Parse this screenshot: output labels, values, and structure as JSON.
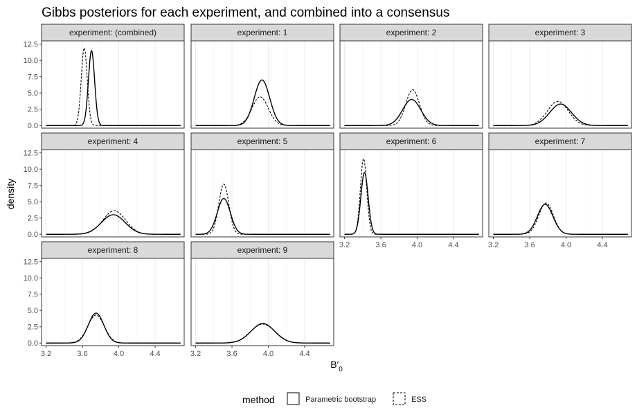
{
  "chart_data": {
    "type": "line",
    "title": "Gibbs posteriors for each experiment, and combined into a consensus",
    "xlabel": "B′",
    "xlabel_subscript": "0",
    "ylabel": "density",
    "xlim": [
      3.15,
      4.72
    ],
    "ylim": [
      -0.4,
      13.0
    ],
    "x_ticks": [
      3.2,
      3.6,
      4.0,
      4.4
    ],
    "x_tick_labels": [
      "3.2",
      "3.6",
      "4.0",
      "4.4"
    ],
    "y_ticks": [
      0,
      2.5,
      5,
      7.5,
      10,
      12.5
    ],
    "y_tick_labels": [
      "0.0",
      "2.5",
      "5.0",
      "7.5",
      "10.0",
      "12.5"
    ],
    "grid": true,
    "facet_rows": 3,
    "facet_cols": 4,
    "facets": [
      {
        "label": "experiment: (combined)",
        "series": [
          {
            "name": "Parametric bootstrap",
            "mean": 3.7,
            "sd": 0.034,
            "peak": 11.5
          },
          {
            "name": "ESS",
            "mean": 3.62,
            "sd": 0.033,
            "peak": 11.9
          }
        ]
      },
      {
        "label": "experiment: 1",
        "series": [
          {
            "name": "Parametric bootstrap",
            "mean": 3.93,
            "sd": 0.085,
            "peak": 7.0
          },
          {
            "name": "ESS",
            "mean": 3.91,
            "sd": 0.09,
            "peak": 4.4
          }
        ]
      },
      {
        "label": "experiment: 2",
        "series": [
          {
            "name": "Parametric bootstrap",
            "mean": 3.94,
            "sd": 0.1,
            "peak": 4.0
          },
          {
            "name": "ESS",
            "mean": 3.95,
            "sd": 0.075,
            "peak": 5.5
          }
        ]
      },
      {
        "label": "experiment: 3",
        "series": [
          {
            "name": "Parametric bootstrap",
            "mean": 3.94,
            "sd": 0.12,
            "peak": 3.3
          },
          {
            "name": "ESS",
            "mean": 3.91,
            "sd": 0.115,
            "peak": 3.7
          }
        ]
      },
      {
        "label": "experiment: 4",
        "series": [
          {
            "name": "Parametric bootstrap",
            "mean": 3.94,
            "sd": 0.13,
            "peak": 3.0
          },
          {
            "name": "ESS",
            "mean": 3.95,
            "sd": 0.125,
            "peak": 3.6
          }
        ]
      },
      {
        "label": "experiment: 5",
        "series": [
          {
            "name": "Parametric bootstrap",
            "mean": 3.51,
            "sd": 0.072,
            "peak": 5.5
          },
          {
            "name": "ESS",
            "mean": 3.51,
            "sd": 0.055,
            "peak": 7.7
          }
        ]
      },
      {
        "label": "experiment: 6",
        "series": [
          {
            "name": "Parametric bootstrap",
            "mean": 3.42,
            "sd": 0.04,
            "peak": 9.5
          },
          {
            "name": "ESS",
            "mean": 3.41,
            "sd": 0.035,
            "peak": 11.6
          }
        ]
      },
      {
        "label": "experiment: 7",
        "series": [
          {
            "name": "Parametric bootstrap",
            "mean": 3.77,
            "sd": 0.085,
            "peak": 4.6
          },
          {
            "name": "ESS",
            "mean": 3.78,
            "sd": 0.08,
            "peak": 4.8
          }
        ]
      },
      {
        "label": "experiment: 8",
        "series": [
          {
            "name": "Parametric bootstrap",
            "mean": 3.75,
            "sd": 0.085,
            "peak": 4.6
          },
          {
            "name": "ESS",
            "mean": 3.75,
            "sd": 0.09,
            "peak": 4.3
          }
        ]
      },
      {
        "label": "experiment: 9",
        "series": [
          {
            "name": "Parametric bootstrap",
            "mean": 3.94,
            "sd": 0.13,
            "peak": 3.0
          },
          {
            "name": "ESS",
            "mean": 3.94,
            "sd": 0.135,
            "peak": 2.9
          }
        ]
      }
    ],
    "legend": {
      "title": "method",
      "position": "bottom",
      "entries": [
        {
          "label": "Parametric bootstrap",
          "linetype": "solid"
        },
        {
          "label": "ESS",
          "linetype": "dashed"
        }
      ]
    }
  },
  "colors": {
    "line": "#000000",
    "strip_fill": "#d9d9d9",
    "strip_border": "#333333",
    "panel_border": "#333333",
    "grid_major": "#ebebeb",
    "grid_minor": "#f5f5f5",
    "tick_text": "#4d4d4d"
  }
}
